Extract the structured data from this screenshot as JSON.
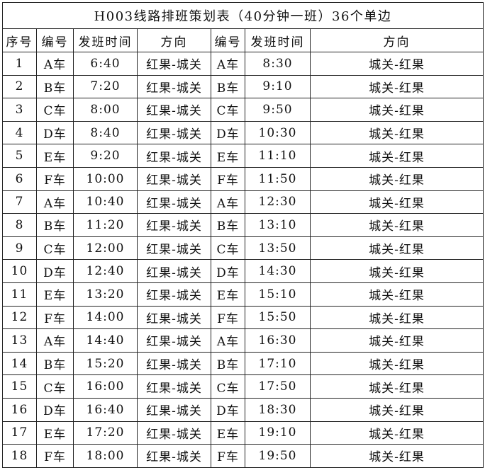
{
  "title": "H003线路排班策划表（40分钟一班）36个单边",
  "headers": [
    "序号",
    "编号",
    "发班时间",
    "方向",
    "编号",
    "发班时间",
    "方向"
  ],
  "rows": [
    [
      "1",
      "A车",
      "6:40",
      "红果-城关",
      "A车",
      "8:30",
      "城关-红果"
    ],
    [
      "2",
      "B车",
      "7:20",
      "红果-城关",
      "B车",
      "9:10",
      "城关-红果"
    ],
    [
      "3",
      "C车",
      "8:00",
      "红果-城关",
      "C车",
      "9:50",
      "城关-红果"
    ],
    [
      "4",
      "D车",
      "8:40",
      "红果-城关",
      "D车",
      "10:30",
      "城关-红果"
    ],
    [
      "5",
      "E车",
      "9:20",
      "红果-城关",
      "E车",
      "11:10",
      "城关-红果"
    ],
    [
      "6",
      "F车",
      "10:00",
      "红果-城关",
      "F车",
      "11:50",
      "城关-红果"
    ],
    [
      "7",
      "A车",
      "10:40",
      "红果-城关",
      "A车",
      "12:30",
      "城关-红果"
    ],
    [
      "8",
      "B车",
      "11:20",
      "红果-城关",
      "B车",
      "13:10",
      "城关-红果"
    ],
    [
      "9",
      "C车",
      "12:00",
      "红果-城关",
      "C车",
      "13:50",
      "城关-红果"
    ],
    [
      "10",
      "D车",
      "12:40",
      "红果-城关",
      "D车",
      "14:30",
      "城关-红果"
    ],
    [
      "11",
      "E车",
      "13:20",
      "红果-城关",
      "E车",
      "15:10",
      "城关-红果"
    ],
    [
      "12",
      "F车",
      "14:00",
      "红果-城关",
      "F车",
      "15:50",
      "城关-红果"
    ],
    [
      "13",
      "A车",
      "14:40",
      "红果-城关",
      "A车",
      "16:30",
      "城关-红果"
    ],
    [
      "14",
      "B车",
      "15:20",
      "红果-城关",
      "B车",
      "17:10",
      "城关-红果"
    ],
    [
      "15",
      "C车",
      "16:00",
      "红果-城关",
      "C车",
      "17:50",
      "城关-红果"
    ],
    [
      "16",
      "D车",
      "16:40",
      "红果-城关",
      "D车",
      "18:30",
      "城关-红果"
    ],
    [
      "17",
      "E车",
      "17:20",
      "红果-城关",
      "E车",
      "19:10",
      "城关-红果"
    ],
    [
      "18",
      "F车",
      "18:00",
      "红果-城关",
      "F车",
      "19:50",
      "城关-红果"
    ]
  ]
}
